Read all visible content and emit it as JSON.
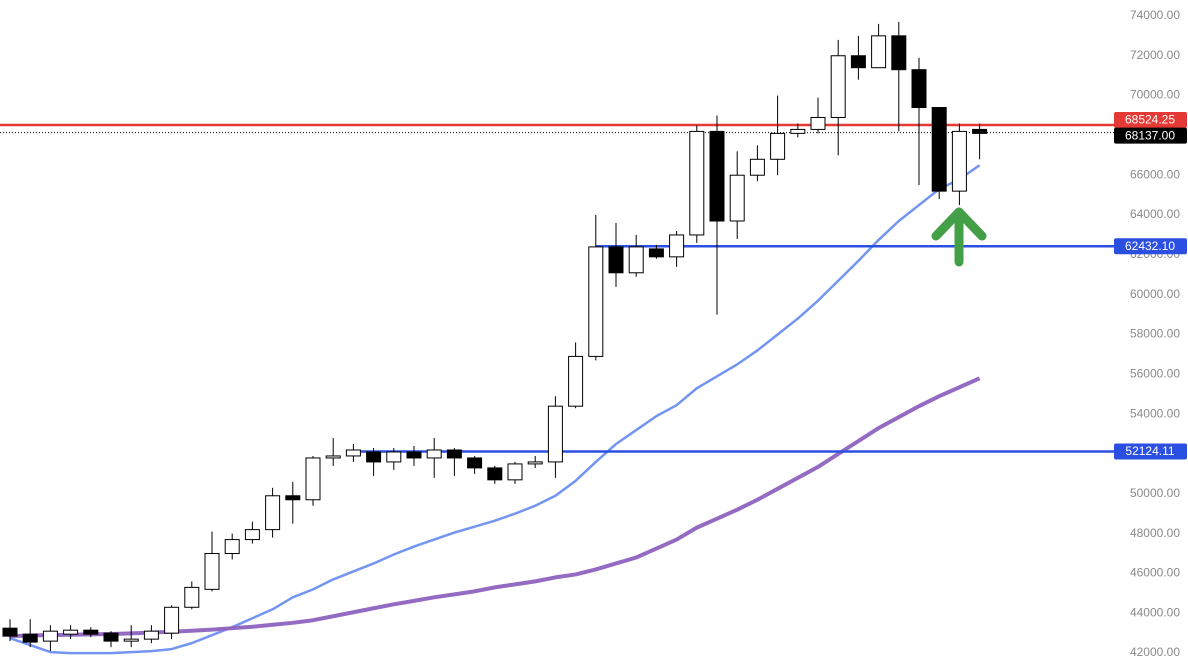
{
  "chart_data": {
    "type": "candlestick",
    "ylim": [
      41200,
      74800
    ],
    "yticks": [
      {
        "value": 42000,
        "label": "42000.00"
      },
      {
        "value": 44000,
        "label": "44000.00"
      },
      {
        "value": 46000,
        "label": "46000.00"
      },
      {
        "value": 48000,
        "label": "48000.00"
      },
      {
        "value": 50000,
        "label": "50000.00"
      },
      {
        "value": 52000,
        "label": "52000.00"
      },
      {
        "value": 54000,
        "label": "54000.00"
      },
      {
        "value": 56000,
        "label": "56000.00"
      },
      {
        "value": 58000,
        "label": "58000.00"
      },
      {
        "value": 60000,
        "label": "60000.00"
      },
      {
        "value": 62000,
        "label": "62000.00"
      },
      {
        "value": 64000,
        "label": "64000.00"
      },
      {
        "value": 66000,
        "label": "66000.00"
      },
      {
        "value": 68000,
        "label": "68000.00"
      },
      {
        "value": 70000,
        "label": "70000.00"
      },
      {
        "value": 72000,
        "label": "72000.00"
      },
      {
        "value": 74000,
        "label": "74000.00"
      }
    ],
    "up_color": "#ffffff",
    "down_color": "#000000",
    "wick_color": "#000000",
    "open": [
      43250,
      42950,
      42600,
      42950,
      43150,
      43000,
      42600,
      42700,
      43000,
      44300,
      45200,
      47000,
      47700,
      48200,
      49900,
      49700,
      51800,
      51900,
      52100,
      51600,
      52100,
      51800,
      52200,
      51800,
      51300,
      50700,
      51500,
      51600,
      54400,
      56900,
      62400,
      61100,
      62300,
      61900,
      63000,
      68200,
      63700,
      66000,
      66800,
      68100,
      68300,
      68900,
      72000,
      71400,
      73000,
      71300,
      69400,
      65200,
      68300
    ],
    "high": [
      43700,
      43700,
      43400,
      43400,
      43300,
      43100,
      43400,
      43400,
      44400,
      45600,
      48100,
      48000,
      48600,
      50300,
      50600,
      51900,
      52800,
      52500,
      52300,
      52300,
      52400,
      52800,
      52300,
      51900,
      51400,
      51600,
      51900,
      54900,
      57600,
      64000,
      63600,
      63000,
      62500,
      63200,
      68500,
      69000,
      67200,
      67500,
      70000,
      68600,
      69900,
      72800,
      73000,
      73600,
      73700,
      71900,
      69400,
      68600,
      68600
    ],
    "low": [
      42600,
      42300,
      42100,
      42700,
      42800,
      42300,
      42300,
      42500,
      42700,
      44200,
      45100,
      46700,
      47500,
      47800,
      48500,
      49400,
      51400,
      51600,
      50900,
      51200,
      51400,
      50800,
      50900,
      51000,
      50500,
      50500,
      51300,
      50800,
      54300,
      56700,
      60400,
      60900,
      61800,
      61400,
      62600,
      59000,
      62800,
      65700,
      66000,
      67900,
      68100,
      67000,
      70800,
      71400,
      68200,
      65500,
      64800,
      64500,
      66800
    ],
    "close": [
      42850,
      42550,
      43100,
      43150,
      42950,
      42600,
      42700,
      43100,
      44300,
      45300,
      47000,
      47700,
      48200,
      49900,
      49700,
      51800,
      51900,
      52200,
      51600,
      52100,
      51800,
      52200,
      51800,
      51300,
      50700,
      51500,
      51600,
      54400,
      56900,
      62400,
      61100,
      62400,
      61900,
      63000,
      68200,
      63700,
      66000,
      66800,
      68100,
      68300,
      68900,
      72000,
      71400,
      73000,
      71300,
      69400,
      65200,
      68200,
      68100
    ],
    "moving_averages": [
      {
        "color": "#6b8ff0",
        "values": [
          42750,
          42400,
          42050,
          42000,
          42000,
          42000,
          42050,
          42100,
          42200,
          42500,
          42900,
          43300,
          43750,
          44200,
          44800,
          45200,
          45700,
          46100,
          46500,
          46950,
          47350,
          47700,
          48050,
          48350,
          48650,
          49000,
          49400,
          49900,
          50650,
          51600,
          52500,
          53200,
          53900,
          54450,
          55300,
          55900,
          56500,
          57200,
          58000,
          58800,
          59700,
          60700,
          61700,
          62750,
          63700,
          64500,
          65300,
          65800,
          66500
        ]
      },
      {
        "color": "#8e63c0",
        "values": [
          42850,
          42880,
          42900,
          42920,
          42940,
          42960,
          42990,
          43030,
          43070,
          43120,
          43180,
          43250,
          43320,
          43420,
          43520,
          43650,
          43850,
          44050,
          44250,
          44450,
          44620,
          44800,
          44950,
          45100,
          45300,
          45450,
          45600,
          45800,
          45950,
          46200,
          46500,
          46800,
          47250,
          47700,
          48300,
          48750,
          49200,
          49700,
          50250,
          50800,
          51350,
          52000,
          52650,
          53300,
          53850,
          54400,
          54900,
          55350,
          55800
        ]
      }
    ],
    "levels": [
      {
        "price": 68524.25,
        "color": "#e53935"
      },
      {
        "price": {
          "value": 68137,
          "label": "68137.00"
        },
        "color": "#000000",
        "dotted": true
      },
      {
        "price": {
          "value": 62432.1,
          "label": "62432.10"
        },
        "color": "#2b4fe0"
      },
      {
        "price": 52124.11,
        "color": "#2b4fe0"
      }
    ]
  }
}
